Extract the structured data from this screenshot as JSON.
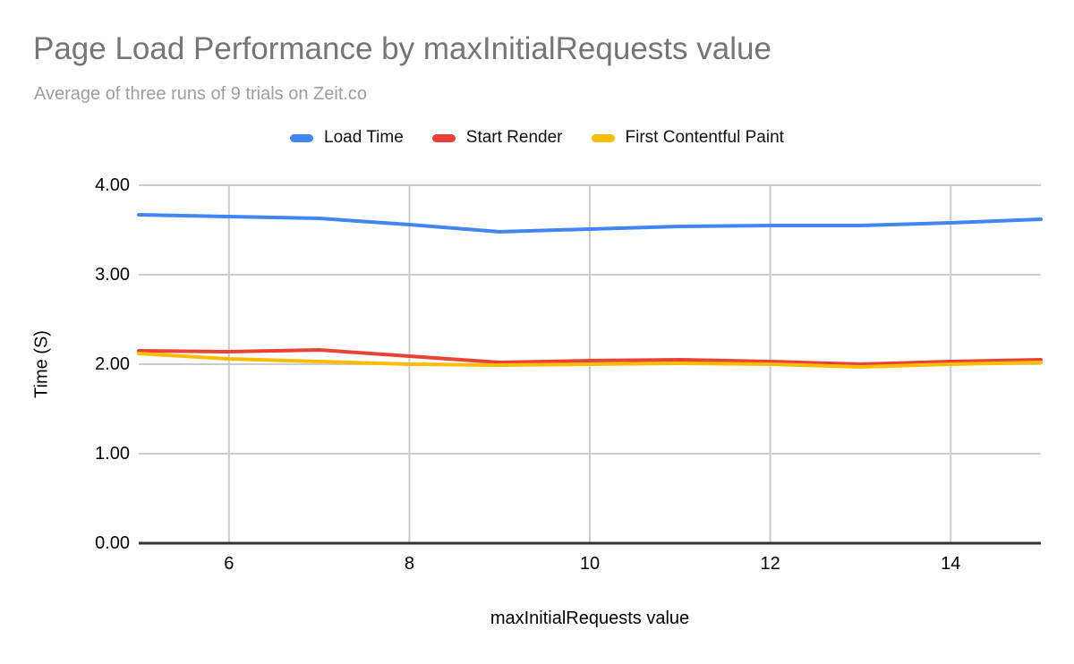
{
  "chart_data": {
    "type": "line",
    "title": "Page Load Performance by maxInitialRequests value",
    "subtitle": "Average of three runs of 9 trials on Zeit.co",
    "xlabel": "maxInitialRequests value",
    "ylabel": "Time (S)",
    "xlim": [
      5,
      15
    ],
    "ylim": [
      0,
      4
    ],
    "xticks": [
      6,
      8,
      10,
      12,
      14
    ],
    "yticks": [
      "4.00",
      "3.00",
      "2.00",
      "1.00",
      "0.00"
    ],
    "grid": true,
    "legend_position": "top",
    "x": [
      5,
      6,
      7,
      8,
      9,
      10,
      11,
      12,
      13,
      14,
      15
    ],
    "series": [
      {
        "name": "Load Time",
        "color": "#4285F4",
        "values": [
          3.67,
          3.65,
          3.63,
          3.56,
          3.48,
          3.51,
          3.54,
          3.55,
          3.55,
          3.58,
          3.62
        ]
      },
      {
        "name": "Start Render",
        "color": "#EA4335",
        "values": [
          2.15,
          2.14,
          2.16,
          2.09,
          2.02,
          2.04,
          2.05,
          2.03,
          2.0,
          2.03,
          2.05
        ]
      },
      {
        "name": "First Contentful Paint",
        "color": "#FBBC04",
        "values": [
          2.12,
          2.06,
          2.03,
          2.0,
          1.99,
          2.0,
          2.01,
          2.0,
          1.97,
          2.0,
          2.02
        ]
      }
    ],
    "colors": {
      "gridline": "#cccccc",
      "axis_line": "#333333",
      "title_text": "#757575",
      "subtitle_text": "#9e9e9e",
      "tick_text": "#000000"
    }
  }
}
